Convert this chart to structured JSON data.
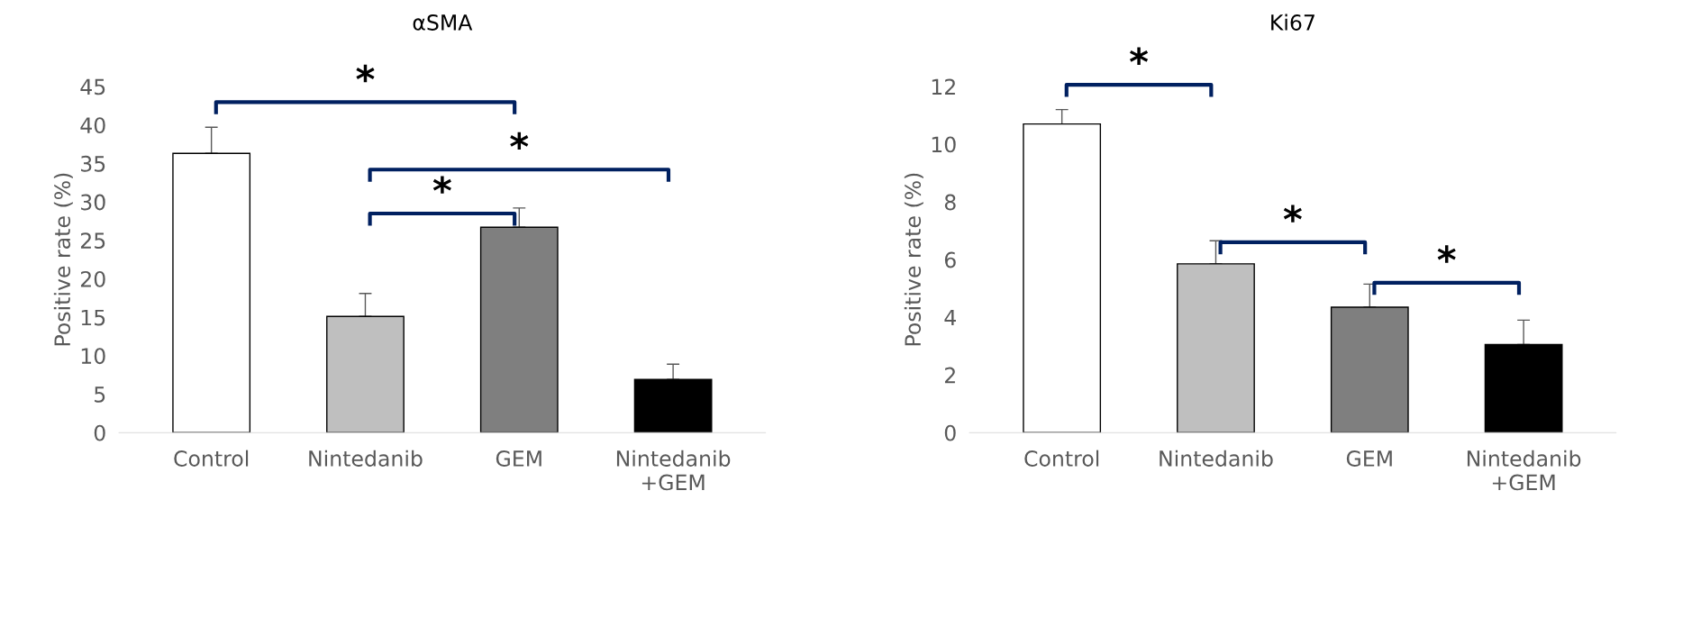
{
  "chart_data": [
    {
      "type": "bar",
      "title": "αSMA",
      "ylabel": "Positive rate (%)",
      "categories": [
        "Control",
        "Nintedanib",
        "GEM",
        "Nintedanib\n+GEM"
      ],
      "values": [
        36.3,
        15.1,
        26.7,
        6.9
      ],
      "colors": [
        "#ffffff",
        "#bfbfbf",
        "#7f7f7f",
        "#000000"
      ],
      "errors": [
        [
          36.3,
          39.7
        ],
        [
          15.1,
          18.1
        ],
        [
          26.7,
          29.2
        ],
        [
          6.9,
          8.9
        ]
      ],
      "ylim": [
        0,
        45
      ],
      "yticks": [
        0,
        5,
        10,
        15,
        20,
        25,
        30,
        35,
        40,
        45
      ],
      "grid": false,
      "annotations": [
        "*",
        "*",
        "*"
      ]
    },
    {
      "type": "bar",
      "title": "Ki67",
      "ylabel": "Positive rate (%)",
      "categories": [
        "Control",
        "Nintedanib",
        "GEM",
        "Nintedanib\n+GEM"
      ],
      "values": [
        10.7,
        5.85,
        4.35,
        3.05
      ],
      "colors": [
        "#ffffff",
        "#bfbfbf",
        "#7f7f7f",
        "#000000"
      ],
      "errors": [
        [
          10.7,
          11.2
        ],
        [
          5.85,
          6.65
        ],
        [
          4.35,
          5.15
        ],
        [
          3.05,
          3.9
        ]
      ],
      "ylim": [
        0,
        12
      ],
      "yticks": [
        0,
        2,
        4,
        6,
        8,
        10,
        12
      ],
      "grid": false,
      "annotations": [
        "*",
        "*",
        "*"
      ]
    }
  ]
}
